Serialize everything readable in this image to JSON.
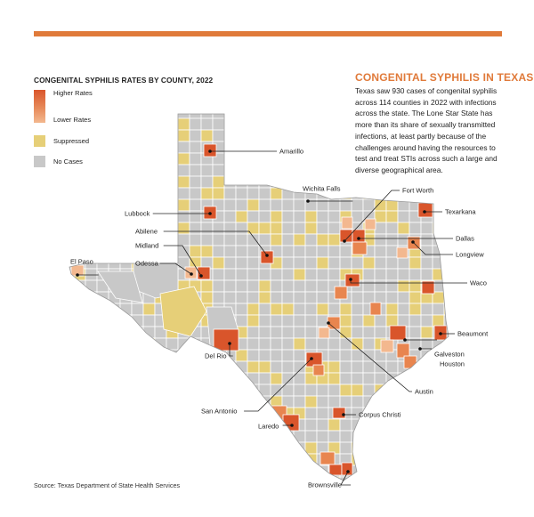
{
  "legend": {
    "title": "CONGENITAL SYPHILIS RATES BY COUNTY, 2022",
    "higher": "Higher Rates",
    "lower": "Lower Rates",
    "suppressed": "Suppressed",
    "no_cases": "No Cases"
  },
  "colors": {
    "accent": "#e07a3a",
    "high": "#d9552b",
    "mid": "#e8854f",
    "low": "#f3b88f",
    "suppressed": "#e6cf78",
    "no_cases": "#c8c8c8",
    "border": "#ffffff"
  },
  "sidebar": {
    "title": "CONGENITAL SYPHILIS IN TEXAS",
    "body": "Texas saw 930 cases of congenital syphilis across 114 counties in 2022 with infections across the state. The Lone Star State has more than its share of sexually transmitted infections, at least partly because of the challenges around having the resources to test and treat STIs across such a large and diverse geographical area."
  },
  "source": "Source: Texas Department of State Health Services",
  "cities": {
    "amarillo": "Amarillo",
    "wichita_falls": "Wichita Falls",
    "fort_worth": "Fort Worth",
    "texarkana": "Texarkana",
    "lubbock": "Lubbock",
    "abilene": "Abilene",
    "dallas": "Dallas",
    "midland": "Midland",
    "longview": "Longview",
    "el_paso": "El Paso",
    "odessa": "Odessa",
    "waco": "Waco",
    "beaumont": "Beaumont",
    "del_rio": "Del Rio",
    "galveston": "Galveston",
    "houston": "Houston",
    "austin": "Austin",
    "san_antonio": "San Antonio",
    "corpus_christi": "Corpus Christi",
    "laredo": "Laredo",
    "brownsville": "Brownsville"
  }
}
